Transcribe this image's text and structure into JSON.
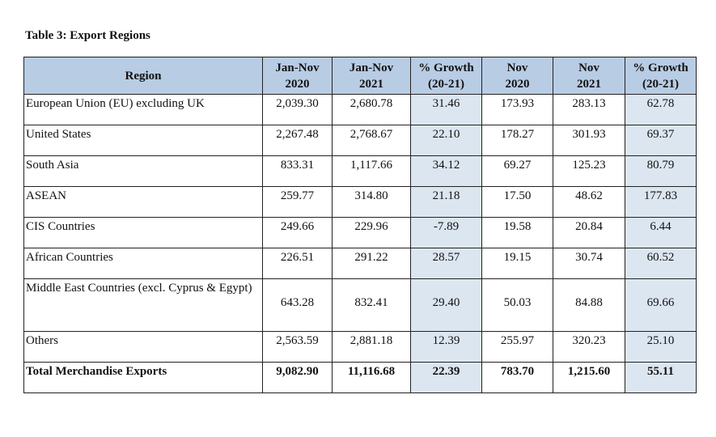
{
  "title": "Table 3: Export Regions",
  "colors": {
    "header_fill": "#b8cce4",
    "growth_fill": "#dce6f1"
  },
  "headers": [
    {
      "line1": "Region",
      "line2": ""
    },
    {
      "line1": "Jan-Nov",
      "line2": "2020"
    },
    {
      "line1": "Jan-Nov",
      "line2": "2021"
    },
    {
      "line1": "% Growth",
      "line2": "(20-21)"
    },
    {
      "line1": "Nov",
      "line2": "2020"
    },
    {
      "line1": "Nov",
      "line2": "2021"
    },
    {
      "line1": "% Growth",
      "line2": "(20-21)"
    }
  ],
  "rows": [
    {
      "region": "European Union (EU) excluding UK",
      "values": [
        "2,039.30",
        "2,680.78",
        "31.46",
        "173.93",
        "283.13",
        "62.78"
      ]
    },
    {
      "region": "United States",
      "values": [
        "2,267.48",
        "2,768.67",
        "22.10",
        "178.27",
        "301.93",
        "69.37"
      ]
    },
    {
      "region": "South Asia",
      "values": [
        "833.31",
        "1,117.66",
        "34.12",
        "69.27",
        "125.23",
        "80.79"
      ]
    },
    {
      "region": "ASEAN",
      "values": [
        "259.77",
        "314.80",
        "21.18",
        "17.50",
        "48.62",
        "177.83"
      ]
    },
    {
      "region": "CIS Countries",
      "values": [
        "249.66",
        "229.96",
        "-7.89",
        "19.58",
        "20.84",
        "6.44"
      ]
    },
    {
      "region": "African Countries",
      "values": [
        "226.51",
        "291.22",
        "28.57",
        "19.15",
        "30.74",
        "60.52"
      ]
    },
    {
      "region": "Middle East Countries (excl. Cyprus & Egypt)",
      "values": [
        "643.28",
        "832.41",
        "29.40",
        "50.03",
        "84.88",
        "69.66"
      ]
    },
    {
      "region": "Others",
      "values": [
        "2,563.59",
        "2,881.18",
        "12.39",
        "255.97",
        "320.23",
        "25.10"
      ]
    },
    {
      "region": "Total Merchandise Exports",
      "values": [
        "9,082.90",
        "11,116.68",
        "22.39",
        "783.70",
        "1,215.60",
        "55.11"
      ]
    }
  ]
}
